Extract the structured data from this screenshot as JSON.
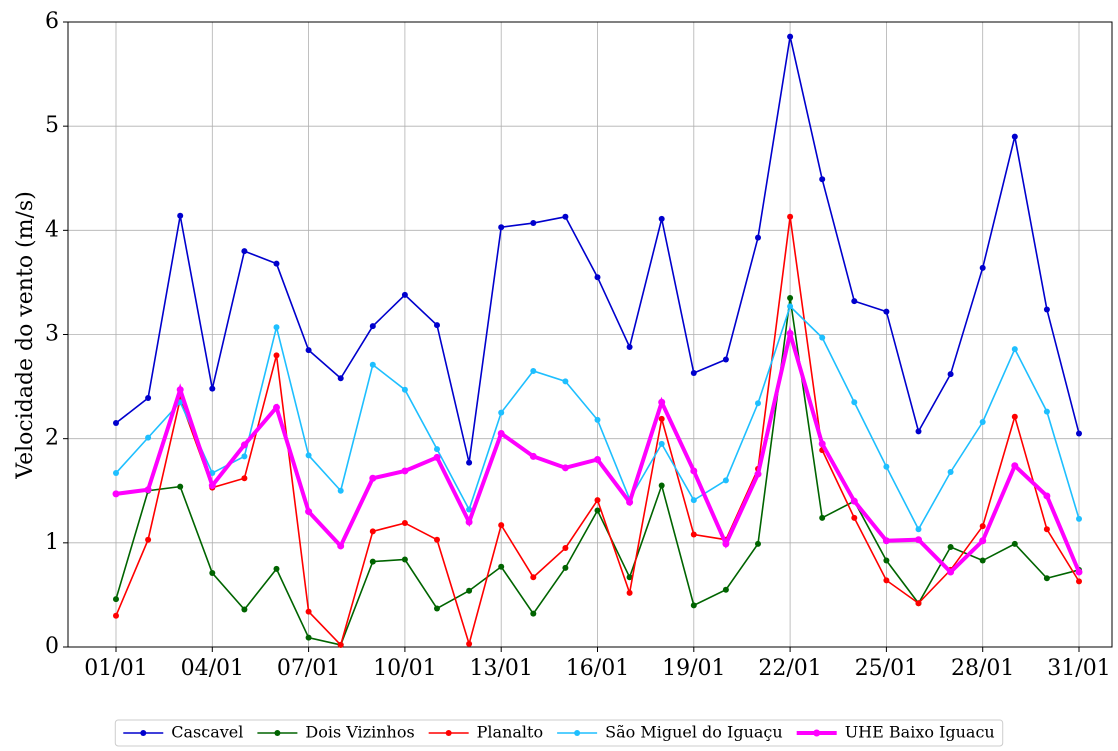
{
  "chart_data": {
    "type": "line",
    "y_label": "Velocidade do vento (m/s)",
    "categories": [
      "01/01",
      null,
      null,
      "04/01",
      null,
      null,
      "07/01",
      null,
      null,
      "10/01",
      null,
      null,
      "13/01",
      null,
      null,
      "16/01",
      null,
      null,
      "19/01",
      null,
      null,
      "22/01",
      null,
      null,
      "25/01",
      null,
      null,
      "28/01",
      null,
      null,
      "31/01"
    ],
    "series": [
      {
        "name": "Cascavel",
        "color": "#0000cd",
        "values": [
          2.15,
          2.39,
          4.14,
          2.48,
          3.8,
          3.68,
          2.85,
          2.58,
          3.08,
          3.38,
          3.09,
          1.77,
          4.03,
          4.07,
          4.13,
          3.55,
          2.88,
          4.11,
          2.63,
          2.76,
          3.93,
          5.86,
          4.49,
          3.32,
          3.22,
          2.07,
          2.62,
          3.64,
          4.9,
          3.24,
          2.05
        ]
      },
      {
        "name": "Dois Vizinhos",
        "color": "#006400",
        "values": [
          0.46,
          1.5,
          1.54,
          0.71,
          0.36,
          0.75,
          0.09,
          0.02,
          0.82,
          0.84,
          0.37,
          0.54,
          0.77,
          0.32,
          0.76,
          1.31,
          0.67,
          1.55,
          0.4,
          0.55,
          0.99,
          3.35,
          1.24,
          1.4,
          0.83,
          0.42,
          0.96,
          0.83,
          0.99,
          0.66,
          0.74
        ]
      },
      {
        "name": "Planalto",
        "color": "#ff0000",
        "values": [
          0.3,
          1.03,
          2.38,
          1.53,
          1.62,
          2.8,
          0.34,
          0.02,
          1.11,
          1.19,
          1.03,
          0.03,
          1.17,
          0.67,
          0.95,
          1.41,
          0.52,
          2.19,
          1.08,
          1.03,
          1.71,
          4.13,
          1.89,
          1.24,
          0.64,
          0.42,
          0.74,
          1.16,
          2.21,
          1.13,
          0.63
        ]
      },
      {
        "name": "São Miguel do Iguaçu",
        "color": "#1ebfff",
        "values": [
          1.67,
          2.01,
          2.35,
          1.67,
          1.83,
          3.07,
          1.84,
          1.5,
          2.71,
          2.47,
          1.9,
          1.32,
          2.25,
          2.65,
          2.55,
          2.18,
          1.42,
          1.95,
          1.41,
          1.6,
          2.34,
          3.27,
          2.97,
          2.35,
          1.73,
          1.13,
          1.68,
          2.16,
          2.86,
          2.26,
          1.23
        ]
      },
      {
        "name": "UHE Baixo Iguacu",
        "color": "#ff00ff",
        "width": 4,
        "values": [
          1.47,
          1.51,
          2.47,
          1.55,
          1.94,
          2.3,
          1.3,
          0.97,
          1.62,
          1.69,
          1.82,
          1.2,
          2.05,
          1.83,
          1.72,
          1.8,
          1.39,
          2.35,
          1.69,
          0.99,
          1.66,
          3.01,
          1.95,
          1.4,
          1.02,
          1.03,
          0.72,
          1.02,
          1.74,
          1.45,
          0.72
        ]
      }
    ],
    "ylim": [
      0,
      6
    ],
    "yticks": [
      0,
      1,
      2,
      3,
      4,
      5,
      6
    ],
    "grid": true,
    "legend": "bottom"
  }
}
